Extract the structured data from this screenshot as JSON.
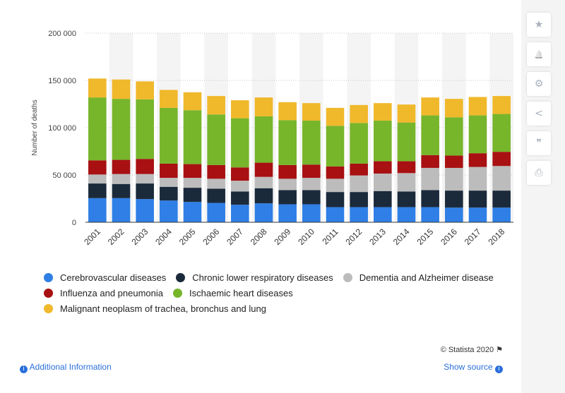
{
  "chart_data": {
    "type": "bar",
    "stacked": true,
    "ylabel": "Number of deaths",
    "xlabel": "",
    "ylim": [
      0,
      200000
    ],
    "yticks": [
      0,
      50000,
      100000,
      150000,
      200000
    ],
    "ytick_labels": [
      "0",
      "50 000",
      "100 000",
      "150 000",
      "200 000"
    ],
    "grid": true,
    "legend_position": "bottom",
    "categories": [
      "2001",
      "2002",
      "2003",
      "2004",
      "2005",
      "2006",
      "2007",
      "2008",
      "2009",
      "2010",
      "2011",
      "2012",
      "2013",
      "2014",
      "2015",
      "2016",
      "2017",
      "2018"
    ],
    "series": [
      {
        "name": "Cerebrovascular diseases",
        "color": "#2f7fe6",
        "values": [
          25500,
          25500,
          24500,
          23000,
          21500,
          20500,
          18500,
          20000,
          19000,
          19000,
          16000,
          16000,
          16000,
          16000,
          16000,
          15500,
          15500,
          15500
        ]
      },
      {
        "name": "Chronic lower respiratory diseases",
        "color": "#1b2a3b",
        "values": [
          15500,
          15000,
          16500,
          14500,
          15000,
          15000,
          14000,
          16000,
          15000,
          15000,
          16000,
          16000,
          17000,
          16500,
          18000,
          18000,
          18000,
          18000
        ]
      },
      {
        "name": "Dementia and Alzheimer disease",
        "color": "#bcbcbc",
        "values": [
          9500,
          10500,
          10000,
          9500,
          10500,
          10500,
          11500,
          12000,
          12000,
          13000,
          14000,
          17500,
          18500,
          19500,
          23500,
          24000,
          25000,
          26000
        ]
      },
      {
        "name": "Influenza and pneumonia",
        "color": "#a81012",
        "values": [
          15000,
          15000,
          16000,
          15000,
          14500,
          14500,
          14000,
          15000,
          14500,
          14000,
          13000,
          12500,
          13000,
          12500,
          13500,
          13000,
          14500,
          15000
        ]
      },
      {
        "name": "Ischaemic heart diseases",
        "color": "#77b52b",
        "values": [
          66500,
          64500,
          63000,
          59000,
          57000,
          53500,
          52000,
          49000,
          47500,
          46500,
          43000,
          43000,
          43000,
          41000,
          42000,
          40500,
          40000,
          40000
        ]
      },
      {
        "name": "Malignant neoplasm of trachea, bronchus and lung",
        "color": "#f0b82b",
        "values": [
          20000,
          20500,
          19000,
          19000,
          19000,
          19500,
          19000,
          20000,
          19000,
          18500,
          19000,
          19000,
          18500,
          19000,
          19000,
          19500,
          19500,
          19000
        ]
      }
    ]
  },
  "sidebar": {
    "star_icon": "★",
    "bell_icon": "🔔",
    "gear_icon": "⚙",
    "share_icon": "<",
    "quote_icon": "❞",
    "print_icon": "⎙"
  },
  "footer": {
    "credit": "© Statista 2020",
    "additional_info": "Additional Information",
    "show_source": "Show source"
  }
}
